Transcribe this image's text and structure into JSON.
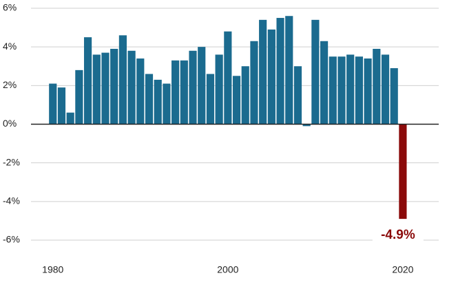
{
  "chart_data": {
    "type": "bar",
    "x": [
      1980,
      1981,
      1982,
      1983,
      1984,
      1985,
      1986,
      1987,
      1988,
      1989,
      1990,
      1991,
      1992,
      1993,
      1994,
      1995,
      1996,
      1997,
      1998,
      1999,
      2000,
      2001,
      2002,
      2003,
      2004,
      2005,
      2006,
      2007,
      2008,
      2009,
      2010,
      2011,
      2012,
      2013,
      2014,
      2015,
      2016,
      2017,
      2018,
      2019,
      2020
    ],
    "values": [
      2.1,
      1.9,
      0.6,
      2.8,
      4.5,
      3.6,
      3.7,
      3.9,
      4.6,
      3.8,
      3.4,
      2.6,
      2.3,
      2.1,
      3.3,
      3.3,
      3.8,
      4.0,
      2.6,
      3.6,
      4.8,
      2.5,
      3.0,
      4.3,
      5.4,
      4.9,
      5.5,
      5.6,
      3.0,
      -0.1,
      5.4,
      4.3,
      3.5,
      3.5,
      3.6,
      3.5,
      3.4,
      3.9,
      3.6,
      2.9,
      -4.9
    ],
    "value_labels": [
      null,
      null,
      null,
      null,
      null,
      null,
      null,
      null,
      null,
      null,
      null,
      null,
      null,
      null,
      null,
      null,
      null,
      null,
      null,
      null,
      null,
      null,
      null,
      null,
      null,
      null,
      null,
      null,
      null,
      null,
      null,
      null,
      null,
      null,
      null,
      null,
      null,
      null,
      null,
      null,
      "-4.9%"
    ],
    "colors": [
      "#1b6b8f",
      "#1b6b8f",
      "#1b6b8f",
      "#1b6b8f",
      "#1b6b8f",
      "#1b6b8f",
      "#1b6b8f",
      "#1b6b8f",
      "#1b6b8f",
      "#1b6b8f",
      "#1b6b8f",
      "#1b6b8f",
      "#1b6b8f",
      "#1b6b8f",
      "#1b6b8f",
      "#1b6b8f",
      "#1b6b8f",
      "#1b6b8f",
      "#1b6b8f",
      "#1b6b8f",
      "#1b6b8f",
      "#1b6b8f",
      "#1b6b8f",
      "#1b6b8f",
      "#1b6b8f",
      "#1b6b8f",
      "#1b6b8f",
      "#1b6b8f",
      "#1b6b8f",
      "#1b6b8f",
      "#1b6b8f",
      "#1b6b8f",
      "#1b6b8f",
      "#1b6b8f",
      "#1b6b8f",
      "#1b6b8f",
      "#1b6b8f",
      "#1b6b8f",
      "#1b6b8f",
      "#1b6b8f",
      "#8b0a0a"
    ],
    "xlim": [
      1977.5,
      2024.1
    ],
    "xticks": [
      1980,
      2000,
      2020
    ],
    "ylim": [
      -6,
      6
    ],
    "yticks": [
      {
        "value": -6,
        "label": "-6%"
      },
      {
        "value": -4,
        "label": "-4%"
      },
      {
        "value": -2,
        "label": "-2%"
      },
      {
        "value": 0,
        "label": "0%"
      },
      {
        "value": 2,
        "label": "2%"
      },
      {
        "value": 4,
        "label": "4%"
      },
      {
        "value": 6,
        "label": "6%"
      }
    ],
    "grid": true
  }
}
